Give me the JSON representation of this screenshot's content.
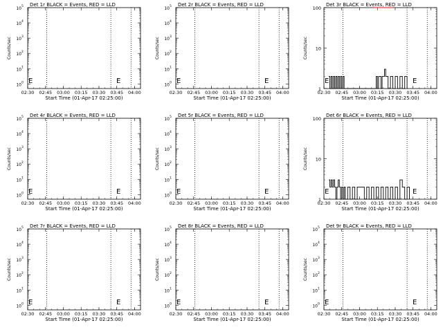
{
  "colors": {
    "events": "#000000",
    "lld": "#ff0000",
    "background": "#ffffff"
  },
  "chart_data": [
    {
      "type": "line",
      "title": "Det 1r BLACK = Events, RED = LLD",
      "xlabel": "Start Time (01-Apr-17 02:25:00)",
      "ylabel": "Counts/sec",
      "xticks": [
        "02:30",
        "02:45",
        "03:00",
        "03:15",
        "03:30",
        "03:45",
        "04:00"
      ],
      "xlim": [
        "02:30",
        "04:05"
      ],
      "yscale": "log",
      "ylim": [
        0.5,
        100000
      ],
      "yticklabels": [
        "10^0",
        "10^1",
        "10^2",
        "10^3",
        "10^4",
        "10^5"
      ],
      "vlines": [
        "02:46",
        "03:40",
        "03:57"
      ],
      "marker_E": "03:44",
      "series": []
    },
    {
      "type": "line",
      "title": "Det 2r BLACK = Events, RED = LLD",
      "xlabel": "Start Time (01-Apr-17 02:25:00)",
      "ylabel": "Counts/sec",
      "xticks": [
        "02:30",
        "02:45",
        "03:00",
        "03:15",
        "03:30",
        "03:45",
        "04:00"
      ],
      "xlim": [
        "02:30",
        "04:05"
      ],
      "yscale": "log",
      "ylim": [
        0.5,
        100000
      ],
      "yticklabels": [
        "10^0",
        "10^1",
        "10^2",
        "10^3",
        "10^4",
        "10^5"
      ],
      "vlines": [
        "02:46",
        "03:40",
        "03:57"
      ],
      "marker_E": "03:44",
      "series": []
    },
    {
      "type": "line",
      "title": "Det 3r BLACK = Events, RED = LLD",
      "xlabel": "Start Time (01-Apr-17 02:25:00)",
      "ylabel": "Counts/sec",
      "xticks": [
        "02:30",
        "02:45",
        "03:00",
        "03:15",
        "03:30",
        "03:45",
        "04:00"
      ],
      "xlim": [
        "02:30",
        "04:05"
      ],
      "yscale": "log",
      "ylim": [
        1,
        100
      ],
      "yticklabels": [
        "1",
        "10",
        "100"
      ],
      "vlines": [
        "02:46",
        "03:40",
        "03:57"
      ],
      "marker_E": "03:44",
      "series": [
        {
          "color": "#000000",
          "x": [
            "02:34",
            "02:35",
            "02:36",
            "02:37",
            "02:38",
            "02:39",
            "02:40",
            "02:41",
            "02:42",
            "02:43",
            "02:44",
            "02:45",
            "02:46",
            "02:47",
            "02:48",
            "03:02",
            "03:04",
            "03:06",
            "03:08",
            "03:10",
            "03:12",
            "03:14",
            "03:15",
            "03:16",
            "03:18",
            "03:19",
            "03:20",
            "03:21",
            "03:22",
            "03:24",
            "03:26",
            "03:28",
            "03:30",
            "03:32",
            "03:34",
            "03:36",
            "03:38",
            "03:40"
          ],
          "y": [
            2,
            1,
            2,
            1,
            2,
            1,
            2,
            1,
            2,
            1,
            2,
            1,
            2,
            1,
            1,
            1,
            1,
            1,
            1,
            1,
            1,
            2,
            1,
            2,
            1,
            2,
            2,
            3,
            2,
            1,
            2,
            1,
            2,
            1,
            2,
            1,
            2,
            1
          ]
        },
        {
          "color": "#ff0000",
          "x": [
            "03:12",
            "03:14",
            "03:16",
            "03:18",
            "03:20",
            "03:22",
            "03:24",
            "03:26",
            "03:28"
          ],
          "y": [
            100,
            100,
            100,
            100,
            100,
            100,
            100,
            100,
            100
          ]
        }
      ]
    },
    {
      "type": "line",
      "title": "Det 4r BLACK = Events, RED = LLD",
      "xlabel": "Start Time (01-Apr-17 02:25:00)",
      "ylabel": "Counts/sec",
      "xticks": [
        "02:30",
        "02:45",
        "03:00",
        "03:15",
        "03:30",
        "03:45",
        "04:00"
      ],
      "xlim": [
        "02:30",
        "04:05"
      ],
      "yscale": "log",
      "ylim": [
        0.5,
        100000
      ],
      "yticklabels": [
        "10^0",
        "10^1",
        "10^2",
        "10^3",
        "10^4",
        "10^5"
      ],
      "vlines": [
        "02:46",
        "03:40",
        "03:57"
      ],
      "marker_E": "03:44",
      "series": []
    },
    {
      "type": "line",
      "title": "Det 5r BLACK = Events, RED = LLD",
      "xlabel": "Start Time (01-Apr-17 02:25:00)",
      "ylabel": "Counts/sec",
      "xticks": [
        "02:30",
        "02:45",
        "03:00",
        "03:15",
        "03:30",
        "03:45",
        "04:00"
      ],
      "xlim": [
        "02:30",
        "04:05"
      ],
      "yscale": "log",
      "ylim": [
        0.5,
        100000
      ],
      "yticklabels": [
        "10^0",
        "10^1",
        "10^2",
        "10^3",
        "10^4",
        "10^5"
      ],
      "vlines": [
        "02:46",
        "03:40",
        "03:57"
      ],
      "marker_E": "03:44",
      "series": []
    },
    {
      "type": "line",
      "title": "Det 6r BLACK = Events, RED = LLD",
      "xlabel": "Start Time (01-Apr-17 02:25:00)",
      "ylabel": "Counts/sec",
      "xticks": [
        "02:30",
        "02:45",
        "03:00",
        "03:15",
        "03:30",
        "03:45",
        "04:00"
      ],
      "xlim": [
        "02:30",
        "04:05"
      ],
      "yscale": "log",
      "ylim": [
        1,
        100
      ],
      "yticklabels": [
        "1",
        "10",
        "100"
      ],
      "vlines": [
        "02:46",
        "03:40",
        "03:57"
      ],
      "marker_E": "03:44",
      "series": [
        {
          "color": "#000000",
          "x": [
            "02:34",
            "02:35",
            "02:36",
            "02:37",
            "02:38",
            "02:39",
            "02:40",
            "02:41",
            "02:42",
            "02:43",
            "02:44",
            "02:45",
            "02:46",
            "02:47",
            "02:48",
            "02:50",
            "02:52",
            "02:54",
            "02:56",
            "02:58",
            "03:00",
            "03:02",
            "03:04",
            "03:06",
            "03:08",
            "03:10",
            "03:12",
            "03:14",
            "03:16",
            "03:18",
            "03:20",
            "03:22",
            "03:24",
            "03:26",
            "03:28",
            "03:30",
            "03:32",
            "03:34",
            "03:36",
            "03:38",
            "03:40",
            "03:42"
          ],
          "y": [
            3,
            2,
            3,
            2,
            3,
            2,
            1,
            2,
            3,
            2,
            1,
            2,
            1,
            2,
            1,
            2,
            1,
            2,
            1,
            2,
            2,
            2,
            1,
            2,
            1,
            2,
            1,
            2,
            1,
            2,
            1,
            2,
            1,
            2,
            1,
            2,
            1,
            3,
            2,
            1,
            2,
            1
          ]
        }
      ]
    },
    {
      "type": "line",
      "title": "Det 7r BLACK = Events, RED = LLD",
      "xlabel": "Start Time (01-Apr-17 02:25:00)",
      "ylabel": "Counts/sec",
      "xticks": [
        "02:30",
        "02:45",
        "03:00",
        "03:15",
        "03:30",
        "03:45",
        "04:00"
      ],
      "xlim": [
        "02:30",
        "04:05"
      ],
      "yscale": "log",
      "ylim": [
        0.5,
        100000
      ],
      "yticklabels": [
        "10^0",
        "10^1",
        "10^2",
        "10^3",
        "10^4",
        "10^5"
      ],
      "vlines": [
        "02:46",
        "03:40",
        "03:57"
      ],
      "marker_E": "03:44",
      "series": []
    },
    {
      "type": "line",
      "title": "Det 8r BLACK = Events, RED = LLD",
      "xlabel": "Start Time (01-Apr-17 02:25:00)",
      "ylabel": "Counts/sec",
      "xticks": [
        "02:30",
        "02:45",
        "03:00",
        "03:15",
        "03:30",
        "03:45",
        "04:00"
      ],
      "xlim": [
        "02:30",
        "04:05"
      ],
      "yscale": "log",
      "ylim": [
        0.5,
        100000
      ],
      "yticklabels": [
        "10^0",
        "10^1",
        "10^2",
        "10^3",
        "10^4",
        "10^5"
      ],
      "vlines": [
        "02:46",
        "03:40",
        "03:57"
      ],
      "marker_E": "03:44",
      "series": []
    },
    {
      "type": "line",
      "title": "Det 9r BLACK = Events, RED = LLD",
      "xlabel": "Start Time (01-Apr-17 02:25:00)",
      "ylabel": "Counts/sec",
      "xticks": [
        "02:30",
        "02:45",
        "03:00",
        "03:15",
        "03:30",
        "03:45",
        "04:00"
      ],
      "xlim": [
        "02:30",
        "04:05"
      ],
      "yscale": "log",
      "ylim": [
        0.5,
        100000
      ],
      "yticklabels": [
        "10^0",
        "10^1",
        "10^2",
        "10^3",
        "10^4",
        "10^5"
      ],
      "vlines": [
        "02:46",
        "03:40",
        "03:57"
      ],
      "marker_E": "03:44",
      "series": []
    }
  ]
}
